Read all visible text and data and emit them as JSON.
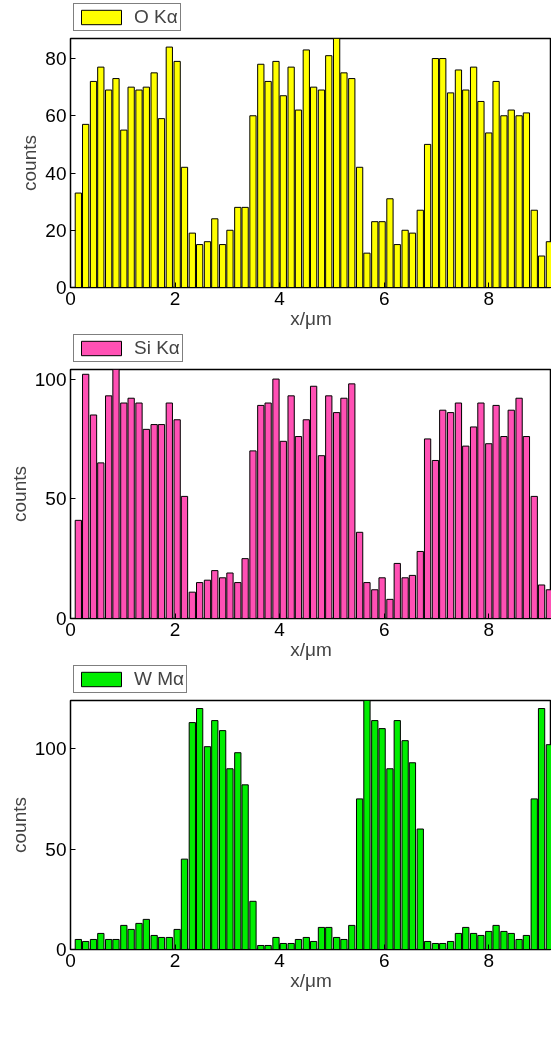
{
  "chart_data": [
    {
      "type": "bar",
      "xlabel": "x/μm",
      "ylabel": "counts",
      "legend": "top left",
      "x": [
        0.15,
        0.29,
        0.44,
        0.58,
        0.73,
        0.87,
        1.02,
        1.16,
        1.31,
        1.45,
        1.6,
        1.74,
        1.89,
        2.04,
        2.18,
        2.33,
        2.47,
        2.62,
        2.76,
        2.91,
        3.05,
        3.2,
        3.34,
        3.49,
        3.64,
        3.78,
        3.93,
        4.07,
        4.22,
        4.36,
        4.51,
        4.65,
        4.8,
        4.94,
        5.09,
        5.23,
        5.38,
        5.53,
        5.67,
        5.82,
        5.96,
        6.11,
        6.25,
        6.4,
        6.54,
        6.69,
        6.83,
        6.98,
        7.12,
        7.27,
        7.42,
        7.56,
        7.71,
        7.85,
        8.0,
        8.14,
        8.29,
        8.43,
        8.58,
        8.72,
        8.87,
        9.01,
        9.16
      ],
      "series": [
        {
          "name": "O Kα",
          "color": "#ffff00",
          "values": [
            33,
            57,
            72,
            77,
            69,
            73,
            55,
            70,
            69,
            70,
            75,
            59,
            84,
            79,
            42,
            19,
            15,
            16,
            24,
            15,
            20,
            28,
            28,
            60,
            78,
            72,
            79,
            67,
            77,
            62,
            83,
            70,
            69,
            81,
            87,
            75,
            73,
            42,
            12,
            23,
            23,
            31,
            15,
            20,
            19,
            27,
            50,
            80,
            80,
            68,
            76,
            69,
            77,
            65,
            54,
            72,
            60,
            62,
            60,
            61,
            27,
            11,
            16
          ]
        }
      ],
      "xlim": [
        0,
        9.2
      ],
      "xticks": [
        0,
        2,
        4,
        6,
        8
      ],
      "ylim": [
        0,
        87
      ],
      "yticks": [
        0,
        20,
        40,
        60,
        80
      ]
    },
    {
      "type": "bar",
      "xlabel": "x/μm",
      "ylabel": "counts",
      "legend": "top left",
      "x": [
        0.15,
        0.29,
        0.44,
        0.58,
        0.73,
        0.87,
        1.02,
        1.16,
        1.31,
        1.45,
        1.6,
        1.74,
        1.89,
        2.04,
        2.18,
        2.33,
        2.47,
        2.62,
        2.76,
        2.91,
        3.05,
        3.2,
        3.34,
        3.49,
        3.64,
        3.78,
        3.93,
        4.07,
        4.22,
        4.36,
        4.51,
        4.65,
        4.8,
        4.94,
        5.09,
        5.23,
        5.38,
        5.53,
        5.67,
        5.82,
        5.96,
        6.11,
        6.25,
        6.4,
        6.54,
        6.69,
        6.83,
        6.98,
        7.12,
        7.27,
        7.42,
        7.56,
        7.71,
        7.85,
        8.0,
        8.14,
        8.29,
        8.43,
        8.58,
        8.72,
        8.87,
        9.01,
        9.16
      ],
      "series": [
        {
          "name": "Si Kα",
          "color": "#ff50b4",
          "values": [
            41,
            102,
            85,
            65,
            93,
            104,
            90,
            92,
            90,
            79,
            81,
            81,
            90,
            83,
            51,
            11,
            15,
            16,
            20,
            17,
            19,
            15,
            25,
            70,
            89,
            90,
            100,
            74,
            93,
            76,
            83,
            97,
            68,
            93,
            86,
            92,
            98,
            36,
            15,
            12,
            17,
            8,
            23,
            17,
            18,
            28,
            75,
            66,
            87,
            86,
            90,
            72,
            80,
            90,
            73,
            89,
            76,
            87,
            92,
            76,
            51,
            14,
            12
          ]
        }
      ],
      "xlim": [
        0,
        9.2
      ],
      "xticks": [
        0,
        2,
        4,
        6,
        8
      ],
      "ylim": [
        0,
        104
      ],
      "yticks": [
        0,
        50,
        100
      ]
    },
    {
      "type": "bar",
      "xlabel": "x/μm",
      "ylabel": "counts",
      "legend": "top left",
      "x": [
        0.15,
        0.29,
        0.44,
        0.58,
        0.73,
        0.87,
        1.02,
        1.16,
        1.31,
        1.45,
        1.6,
        1.74,
        1.89,
        2.04,
        2.18,
        2.33,
        2.47,
        2.62,
        2.76,
        2.91,
        3.05,
        3.2,
        3.34,
        3.49,
        3.64,
        3.78,
        3.93,
        4.07,
        4.22,
        4.36,
        4.51,
        4.65,
        4.8,
        4.94,
        5.09,
        5.23,
        5.38,
        5.53,
        5.67,
        5.82,
        5.96,
        6.11,
        6.25,
        6.4,
        6.54,
        6.69,
        6.83,
        6.98,
        7.12,
        7.27,
        7.42,
        7.56,
        7.71,
        7.85,
        8.0,
        8.14,
        8.29,
        8.43,
        8.58,
        8.72,
        8.87,
        9.01,
        9.16
      ],
      "series": [
        {
          "name": "W Mα",
          "color": "#00ee00",
          "values": [
            5,
            4,
            5,
            8,
            5,
            5,
            12,
            10,
            13,
            15,
            7,
            6,
            6,
            10,
            45,
            113,
            120,
            101,
            114,
            109,
            90,
            98,
            82,
            24,
            2,
            2,
            6,
            3,
            3,
            5,
            6,
            4,
            11,
            11,
            6,
            5,
            12,
            75,
            124,
            114,
            110,
            90,
            114,
            104,
            93,
            60,
            4,
            3,
            3,
            4,
            8,
            11,
            8,
            7,
            9,
            12,
            9,
            8,
            5,
            7,
            75,
            120,
            102
          ]
        }
      ],
      "xlim": [
        0,
        9.2
      ],
      "xticks": [
        0,
        2,
        4,
        6,
        8
      ],
      "ylim": [
        0,
        124
      ],
      "yticks": [
        0,
        50,
        100
      ]
    }
  ]
}
